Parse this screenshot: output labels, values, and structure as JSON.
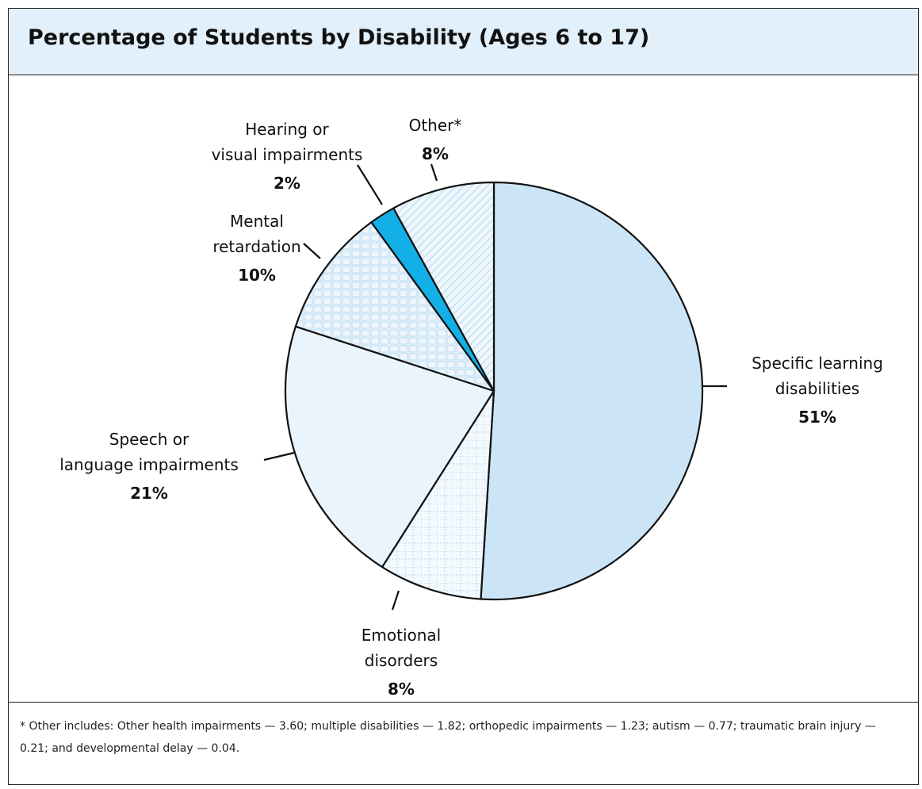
{
  "title": "Percentage of Students by Disability (Ages 6 to 17)",
  "chart_data": {
    "type": "pie",
    "title": "Percentage of Students by Disability (Ages 6 to 17)",
    "slices": [
      {
        "label": "Specific learning disabilities",
        "lines": [
          "Specific learning",
          "disabilities"
        ],
        "value": 51,
        "value_label": "51%",
        "color": "#cce5f6"
      },
      {
        "label": "Emotional disorders",
        "lines": [
          "Emotional",
          "disorders"
        ],
        "value": 8,
        "value_label": "8%",
        "color": "#e6f2fb"
      },
      {
        "label": "Speech or language impairments",
        "lines": [
          "Speech or",
          "language impairments"
        ],
        "value": 21,
        "value_label": "21%",
        "color": "#eaf4fc"
      },
      {
        "label": "Mental retardation",
        "lines": [
          "Mental",
          "retardation"
        ],
        "value": 10,
        "value_label": "10%",
        "color": "#e6f2fb"
      },
      {
        "label": "Hearing or visual impairments",
        "lines": [
          "Hearing or",
          "visual impairments"
        ],
        "value": 2,
        "value_label": "2%",
        "color": "#12b0e6"
      },
      {
        "label": "Other*",
        "lines": [
          "Other*"
        ],
        "value": 8,
        "value_label": "8%",
        "color": "#eef6fc"
      }
    ]
  },
  "footnote": "* Other includes: Other health impairments — 3.60; multiple disabilities — 1.82; orthopedic impairments — 1.23; autism — 0.77; traumatic brain injury — 0.21; and developmental delay — 0.04."
}
